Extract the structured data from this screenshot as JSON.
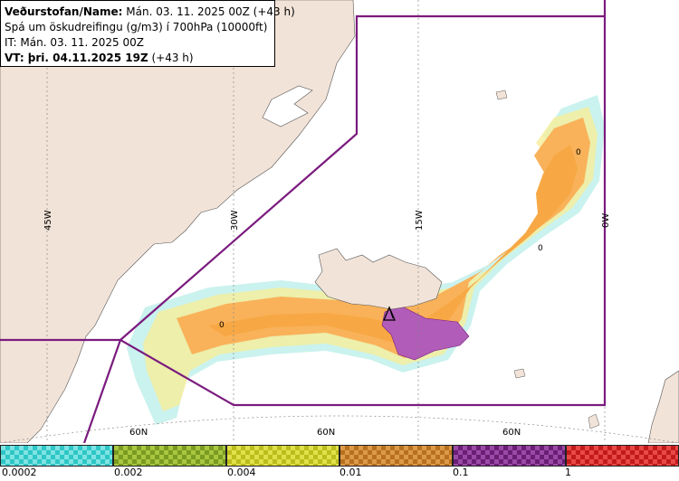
{
  "info": {
    "line1_bold": "Veðurstofan/Name:",
    "line1_rest": " Mán. 03. 11. 2025 00Z (+43 h)",
    "line2": "Spá um öskudreifingu (g/m3) í 700hPa (10000ft)",
    "line3": "IT: Mán. 03. 11. 2025 00Z",
    "line4_bold": "VT: þri. 04.11.2025 19Z",
    "line4_rest": " (+43 h)"
  },
  "grid_labels": {
    "lon": [
      "45W",
      "30W",
      "15W",
      "0W"
    ],
    "lat": [
      "60N",
      "60N",
      "60N"
    ]
  },
  "contour_labels": [
    "0",
    "0",
    "0"
  ],
  "colors": {
    "land": "#f2e3d8",
    "sea": "#ffffff",
    "fir_boundary": "#7b1b7e",
    "ash_low": "#f9b25a",
    "ash_mid": "#fcd78a",
    "ash_high": "#b05cb8",
    "ash_edge_cyan": "#9ee8e0",
    "ash_edge_yellow": "#f5ee9a"
  },
  "legend": {
    "ticks": [
      "0.0002",
      "0.002",
      "0.004",
      "0.01",
      "0.1",
      "1"
    ],
    "swatches": [
      {
        "c1": "#2ec6c6",
        "c2": "#7fe3e3"
      },
      {
        "c1": "#7a9a22",
        "c2": "#a9c640"
      },
      {
        "c1": "#bcbc1c",
        "c2": "#e0e04a"
      },
      {
        "c1": "#b8701e",
        "c2": "#dc9a48"
      },
      {
        "c1": "#6a1e74",
        "c2": "#9a4aa6"
      },
      {
        "c1": "#c21a1a",
        "c2": "#e84848"
      }
    ]
  }
}
